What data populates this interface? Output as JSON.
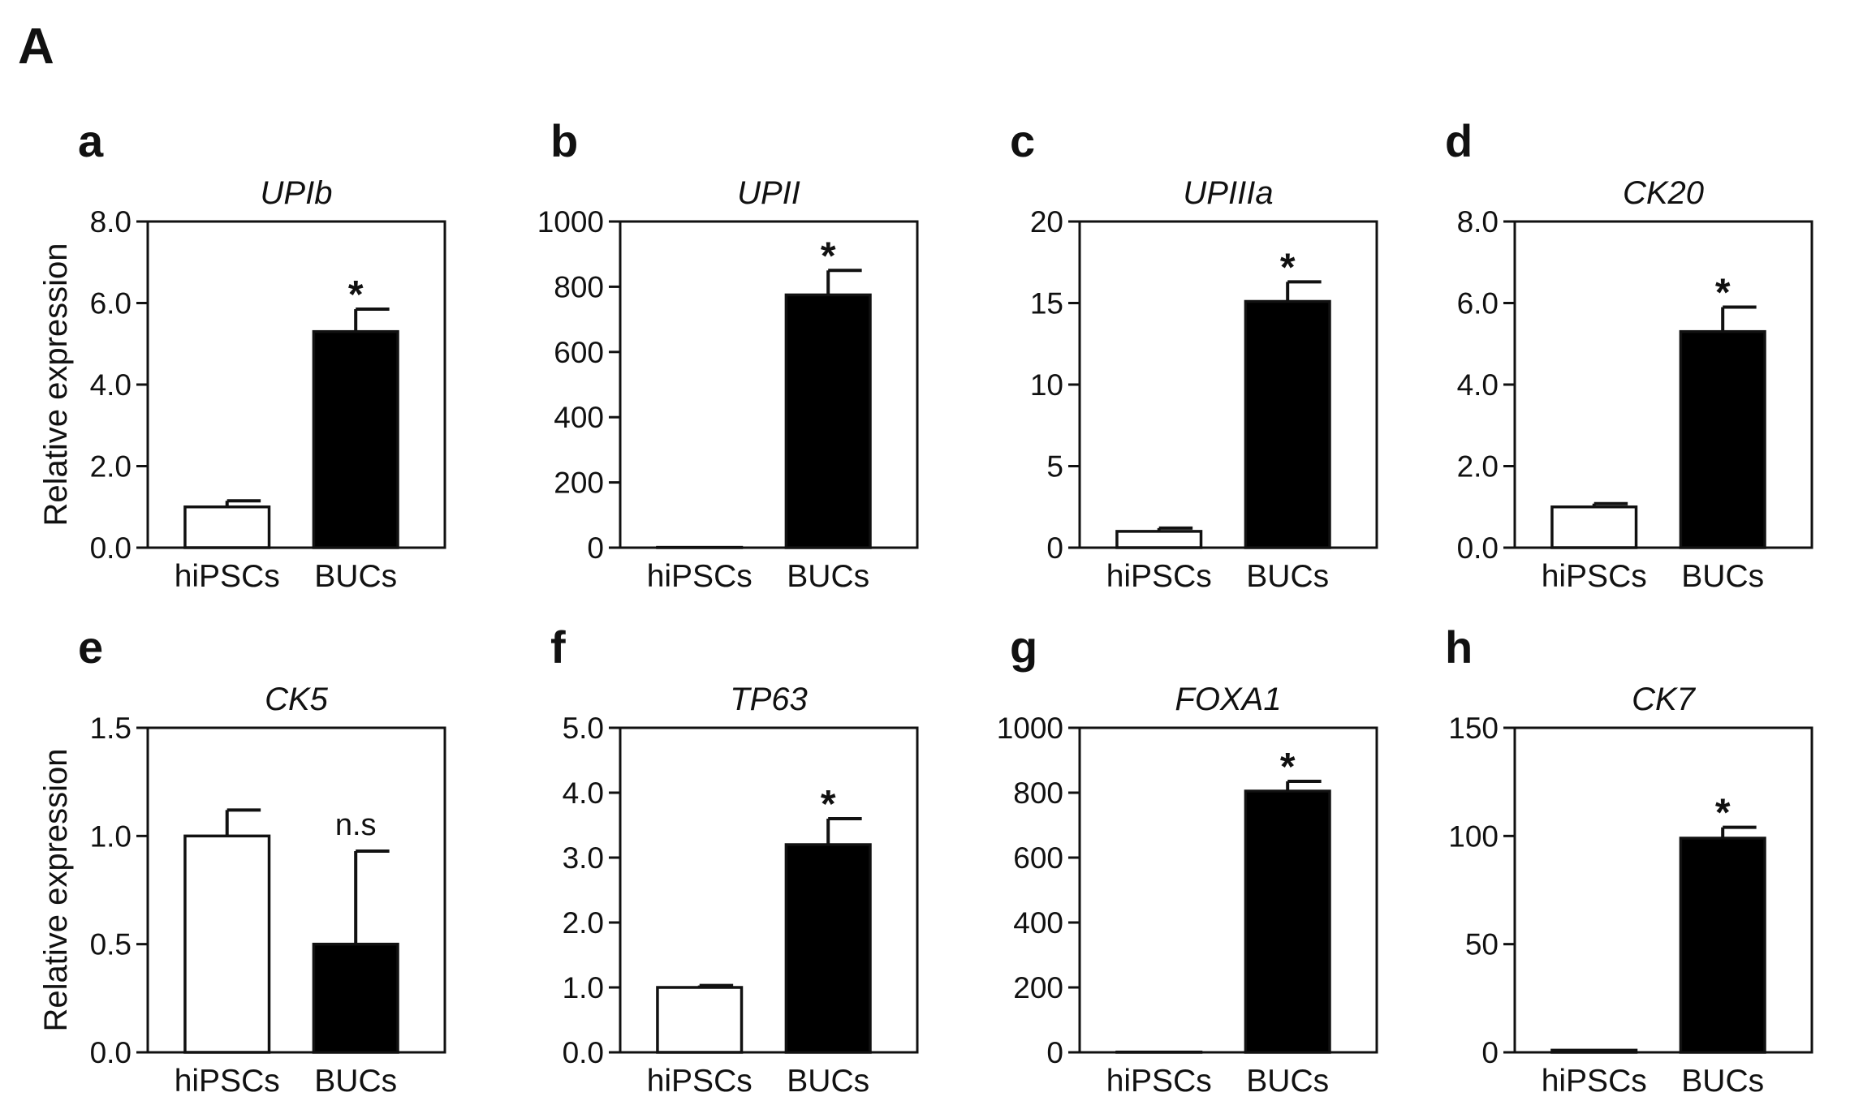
{
  "figure_label": "A",
  "ylabel": "Relative expression",
  "chart_data": [
    {
      "type": "bar",
      "panel": "a",
      "title": "UPIb",
      "categories": [
        "hiPSCs",
        "BUCs"
      ],
      "values": [
        1.0,
        5.3
      ],
      "errors": [
        0.15,
        0.55
      ],
      "significance": [
        "",
        "*"
      ],
      "ylim": [
        0,
        8
      ],
      "yticks": [
        "0.0",
        "2.0",
        "4.0",
        "6.0",
        "8.0"
      ],
      "ylabel": "Relative expression",
      "fills": [
        "#ffffff",
        "#000000"
      ]
    },
    {
      "type": "bar",
      "panel": "b",
      "title": "UPII",
      "categories": [
        "hiPSCs",
        "BUCs"
      ],
      "values": [
        1,
        775
      ],
      "errors": [
        0,
        75
      ],
      "significance": [
        "",
        "*"
      ],
      "ylim": [
        0,
        1000
      ],
      "yticks": [
        "0",
        "200",
        "400",
        "600",
        "800",
        "1000"
      ],
      "ylabel": "",
      "fills": [
        "#ffffff",
        "#000000"
      ]
    },
    {
      "type": "bar",
      "panel": "c",
      "title": "UPIIIa",
      "categories": [
        "hiPSCs",
        "BUCs"
      ],
      "values": [
        1.0,
        15.1
      ],
      "errors": [
        0.2,
        1.2
      ],
      "significance": [
        "",
        "*"
      ],
      "ylim": [
        0,
        20
      ],
      "yticks": [
        "0",
        "5",
        "10",
        "15",
        "20"
      ],
      "ylabel": "",
      "fills": [
        "#ffffff",
        "#000000"
      ]
    },
    {
      "type": "bar",
      "panel": "d",
      "title": "CK20",
      "categories": [
        "hiPSCs",
        "BUCs"
      ],
      "values": [
        1.0,
        5.3
      ],
      "errors": [
        0.08,
        0.6
      ],
      "significance": [
        "",
        "*"
      ],
      "ylim": [
        0,
        8
      ],
      "yticks": [
        "0.0",
        "2.0",
        "4.0",
        "6.0",
        "8.0"
      ],
      "ylabel": "",
      "fills": [
        "#ffffff",
        "#000000"
      ]
    },
    {
      "type": "bar",
      "panel": "e",
      "title": "CK5",
      "categories": [
        "hiPSCs",
        "BUCs"
      ],
      "values": [
        1.0,
        0.5
      ],
      "errors": [
        0.12,
        0.43
      ],
      "significance": [
        "",
        "n.s"
      ],
      "ylim": [
        0,
        1.5
      ],
      "yticks": [
        "0.0",
        "0.5",
        "1.0",
        "1.5"
      ],
      "ylabel": "Relative expression",
      "fills": [
        "#ffffff",
        "#000000"
      ]
    },
    {
      "type": "bar",
      "panel": "f",
      "title": "TP63",
      "categories": [
        "hiPSCs",
        "BUCs"
      ],
      "values": [
        1.0,
        3.2
      ],
      "errors": [
        0.03,
        0.4
      ],
      "significance": [
        "",
        "*"
      ],
      "ylim": [
        0,
        5
      ],
      "yticks": [
        "0.0",
        "1.0",
        "2.0",
        "3.0",
        "4.0",
        "5.0"
      ],
      "ylabel": "",
      "fills": [
        "#ffffff",
        "#000000"
      ]
    },
    {
      "type": "bar",
      "panel": "g",
      "title": "FOXA1",
      "categories": [
        "hiPSCs",
        "BUCs"
      ],
      "values": [
        1,
        805
      ],
      "errors": [
        0,
        30
      ],
      "significance": [
        "",
        "*"
      ],
      "ylim": [
        0,
        1000
      ],
      "yticks": [
        "0",
        "200",
        "400",
        "600",
        "800",
        "1000"
      ],
      "ylabel": "",
      "fills": [
        "#ffffff",
        "#000000"
      ]
    },
    {
      "type": "bar",
      "panel": "h",
      "title": "CK7",
      "categories": [
        "hiPSCs",
        "BUCs"
      ],
      "values": [
        1,
        99
      ],
      "errors": [
        0,
        5
      ],
      "significance": [
        "",
        "*"
      ],
      "ylim": [
        0,
        150
      ],
      "yticks": [
        "0",
        "50",
        "100",
        "150"
      ],
      "ylabel": "",
      "fills": [
        "#ffffff",
        "#000000"
      ]
    }
  ]
}
